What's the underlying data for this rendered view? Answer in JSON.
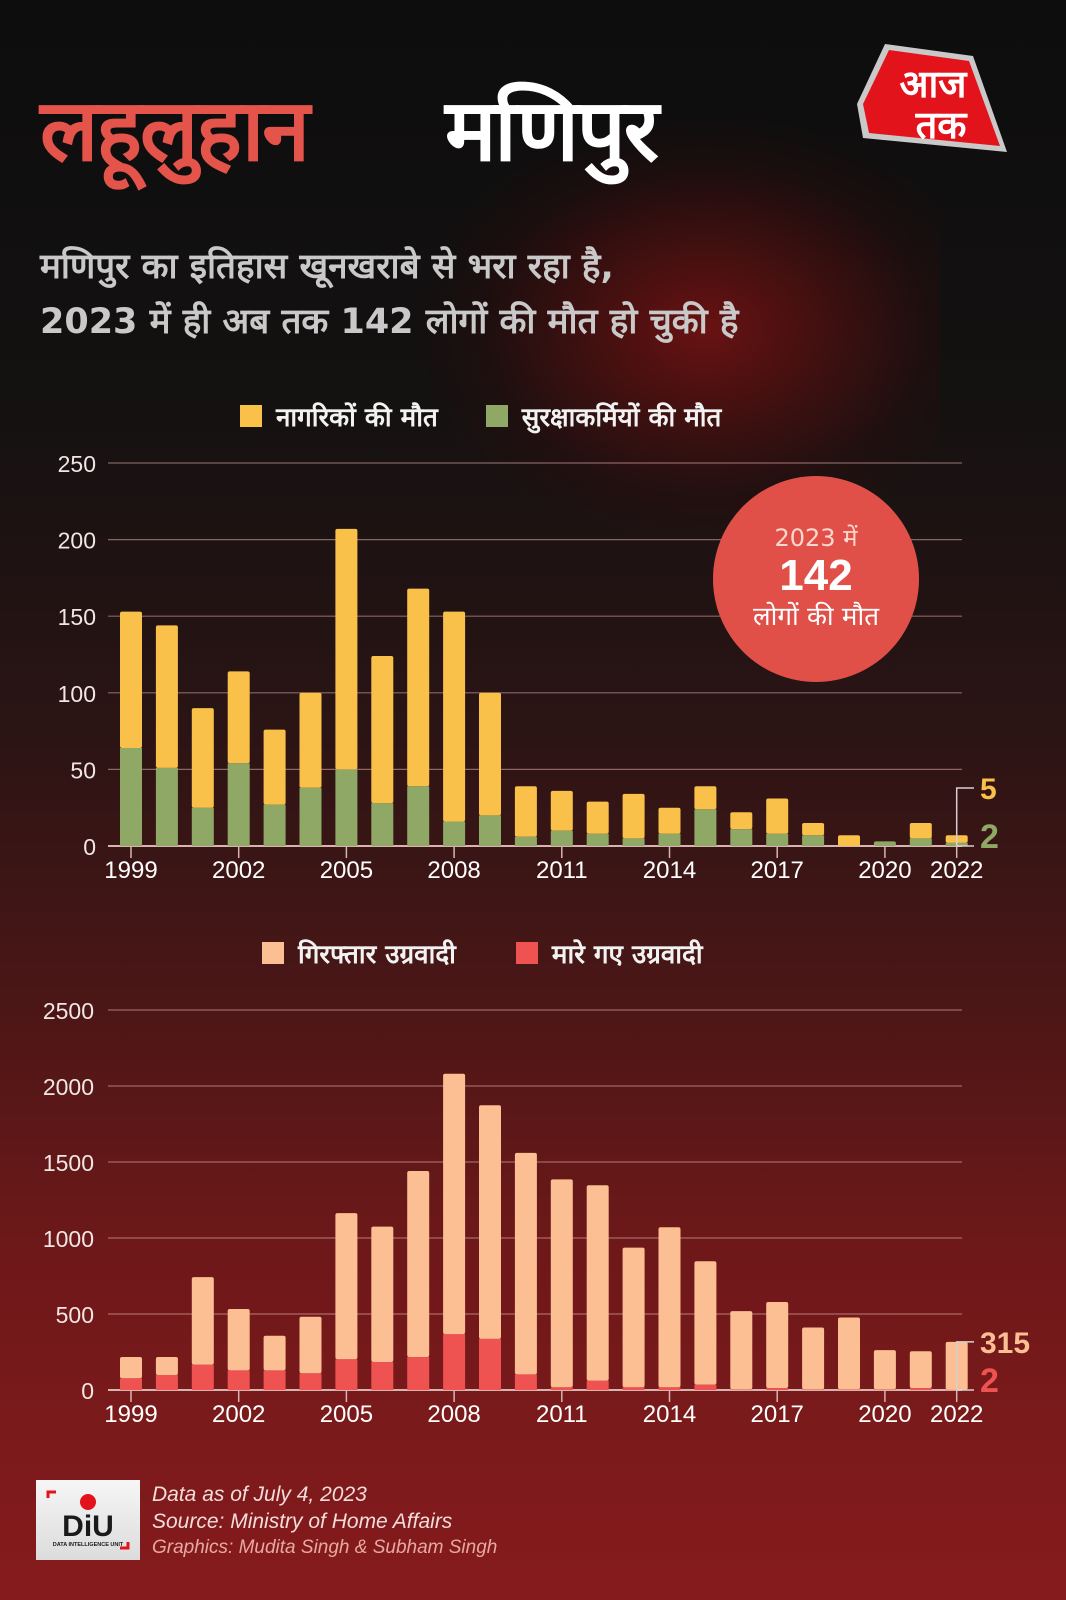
{
  "header": {
    "title_red": "लहूलुहान",
    "title_white": "मणिपुर",
    "subtitle_line1": "मणिपुर का इतिहास खूनखराबे से भरा रहा है,",
    "subtitle_line2": "2023 में ही अब तक 142 लोगों की मौत हो चुकी है",
    "logo_line1": "आज",
    "logo_line2": "तक"
  },
  "bubble": {
    "year_text": "2023 में",
    "number": "142",
    "text": "लोगों की मौत"
  },
  "colors": {
    "civilian": "#f9c04a",
    "security": "#8fa865",
    "arrested": "#fbbf93",
    "killed": "#ee5251",
    "accent_red": "#e4544b"
  },
  "footer": {
    "line1": "Data as of July 4, 2023",
    "line2": "Source: Ministry of Home Affairs",
    "line3": "Graphics: Mudita Singh & Subham Singh",
    "logo_text": "DiU",
    "logo_subtext": "DATA INTELLIGENCE UNIT"
  },
  "chart_data": [
    {
      "type": "bar",
      "stacked": true,
      "title": "",
      "xlabel": "",
      "ylabel": "",
      "ylim": [
        0,
        250
      ],
      "yticks": [
        0,
        50,
        100,
        150,
        200,
        250
      ],
      "grid": true,
      "legend_position": "top",
      "categories": [
        "1999",
        "2000",
        "2001",
        "2002",
        "2003",
        "2004",
        "2005",
        "2006",
        "2007",
        "2008",
        "2009",
        "2010",
        "2011",
        "2012",
        "2013",
        "2014",
        "2015",
        "2016",
        "2017",
        "2018",
        "2019",
        "2020",
        "2021",
        "2022"
      ],
      "xtick_labels": [
        "1999",
        "2002",
        "2005",
        "2008",
        "2011",
        "2014",
        "2017",
        "2020",
        "2022"
      ],
      "series": [
        {
          "name": "सुरक्षाकर्मियों की मौत",
          "color": "#8fa865",
          "values": [
            64,
            51,
            25,
            54,
            27,
            38,
            50,
            28,
            39,
            16,
            20,
            6,
            10,
            8,
            5,
            8,
            24,
            11,
            8,
            7,
            0,
            3,
            5,
            2
          ]
        },
        {
          "name": "नागरिकों की मौत",
          "color": "#f9c04a",
          "values": [
            89,
            93,
            65,
            60,
            49,
            62,
            157,
            96,
            129,
            137,
            80,
            33,
            26,
            21,
            29,
            17,
            15,
            11,
            23,
            8,
            7,
            0,
            10,
            5
          ]
        }
      ],
      "annotations": [
        {
          "category": "2022",
          "series": "नागरिकों की मौत",
          "label": "5"
        },
        {
          "category": "2022",
          "series": "सुरक्षाकर्मियों की मौत",
          "label": "2"
        }
      ]
    },
    {
      "type": "bar",
      "stacked": true,
      "title": "",
      "xlabel": "",
      "ylabel": "",
      "ylim": [
        0,
        2500
      ],
      "yticks": [
        0,
        500,
        1000,
        1500,
        2000,
        2500
      ],
      "grid": true,
      "legend_position": "top",
      "categories": [
        "1999",
        "2000",
        "2001",
        "2002",
        "2003",
        "2004",
        "2005",
        "2006",
        "2007",
        "2008",
        "2009",
        "2010",
        "2011",
        "2012",
        "2013",
        "2014",
        "2015",
        "2016",
        "2017",
        "2018",
        "2019",
        "2020",
        "2021",
        "2022"
      ],
      "xtick_labels": [
        "1999",
        "2002",
        "2005",
        "2008",
        "2011",
        "2014",
        "2017",
        "2020",
        "2022"
      ],
      "series": [
        {
          "name": "मारे गए उग्रवादी",
          "color": "#ee5251",
          "values": [
            77,
            99,
            167,
            129,
            129,
            110,
            202,
            184,
            217,
            368,
            336,
            103,
            18,
            62,
            18,
            18,
            35,
            4,
            13,
            4,
            4,
            4,
            13,
            2
          ]
        },
        {
          "name": "गिरफ्तार उग्रवादी",
          "color": "#fbbf93",
          "values": [
            140,
            118,
            576,
            404,
            228,
            372,
            962,
            891,
            1224,
            1713,
            1537,
            1457,
            1368,
            1285,
            919,
            1053,
            812,
            515,
            566,
            407,
            473,
            258,
            242,
            315
          ]
        }
      ],
      "annotations": [
        {
          "category": "2022",
          "series": "गिरफ्तार उग्रवादी",
          "label": "315"
        },
        {
          "category": "2022",
          "series": "मारे गए उग्रवादी",
          "label": "2"
        }
      ]
    }
  ]
}
